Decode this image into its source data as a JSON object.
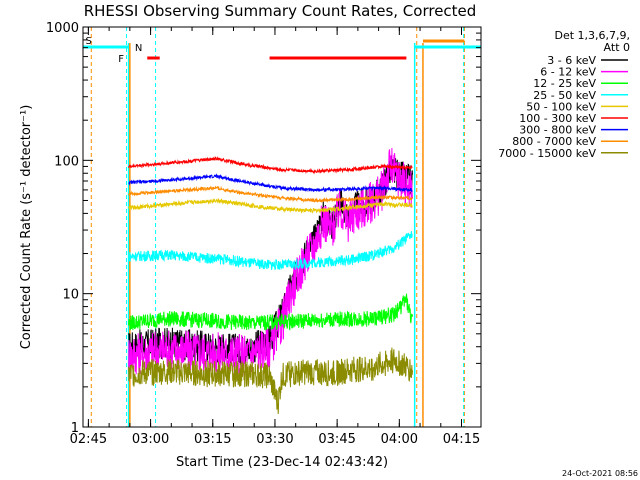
{
  "chart_data": {
    "type": "line",
    "title": "RHESSI Observing Summary Count Rates, Corrected",
    "xlabel": "Start Time (23-Dec-14 02:43:42)",
    "ylabel": "Corrected Count Rate (s⁻¹ detector⁻¹)",
    "footer": "24-Oct-2021 08:56",
    "x_unit": "minutes after 02:43:42 UT, 23-Dec-2014",
    "xlim": [
      0,
      96
    ],
    "ylim": [
      1,
      1000
    ],
    "yscale": "log",
    "x_ticks": [
      {
        "label": "02:45",
        "x": 1.3
      },
      {
        "label": "03:00",
        "x": 16.3
      },
      {
        "label": "03:15",
        "x": 31.3
      },
      {
        "label": "03:30",
        "x": 46.3
      },
      {
        "label": "03:45",
        "x": 61.3
      },
      {
        "label": "04:00",
        "x": 76.3
      },
      {
        "label": "04:15",
        "x": 91.3
      }
    ],
    "y_ticks": [
      {
        "label": "1",
        "y": 1
      },
      {
        "label": "10",
        "y": 10
      },
      {
        "label": "100",
        "y": 100
      },
      {
        "label": "1000",
        "y": 1000
      }
    ],
    "legend": {
      "header1": "Det 1,3,6,7,9,",
      "header2": "Att 0",
      "position": "right"
    },
    "series": [
      {
        "name": "3 - 6 keV",
        "color": "#000000",
        "x": [
          11,
          20,
          30,
          40,
          45,
          48,
          50,
          52,
          54,
          56,
          58,
          60,
          62,
          64,
          66,
          68,
          70,
          72,
          74,
          76,
          78,
          79.5
        ],
        "y": [
          4,
          4.3,
          4,
          3.8,
          4.5,
          7,
          11,
          15,
          21,
          26,
          40,
          32,
          48,
          38,
          45,
          47,
          52,
          60,
          85,
          78,
          72,
          70
        ]
      },
      {
        "name": "6 - 12 keV",
        "color": "#ff00ff",
        "x": [
          11,
          20,
          30,
          40,
          45,
          48,
          50,
          52,
          54,
          56,
          58,
          60,
          62,
          64,
          66,
          68,
          70,
          72,
          74,
          76,
          78,
          79.5
        ],
        "y": [
          3.5,
          3.8,
          3.6,
          3.5,
          4,
          6,
          10,
          14,
          19,
          24,
          36,
          30,
          44,
          34,
          42,
          44,
          50,
          58,
          90,
          75,
          65,
          60
        ]
      },
      {
        "name": "12 - 25 keV",
        "color": "#00ff00",
        "x": [
          11,
          20,
          30,
          40,
          50,
          60,
          70,
          75,
          78,
          79.5
        ],
        "y": [
          6,
          6.5,
          6.3,
          6,
          6.2,
          6.4,
          6.5,
          7,
          9,
          6
        ]
      },
      {
        "name": "25 - 50 keV",
        "color": "#00ffff",
        "x": [
          11,
          20,
          25,
          30,
          35,
          40,
          45,
          50,
          55,
          60,
          65,
          70,
          75,
          79.5
        ],
        "y": [
          19,
          19.5,
          19,
          18.5,
          18,
          17,
          16.5,
          16.5,
          17,
          17.5,
          18,
          19.5,
          22,
          28
        ]
      },
      {
        "name": "50 - 100 keV",
        "color": "#e6c800",
        "x": [
          11,
          18,
          25,
          32,
          40,
          48,
          56,
          64,
          72,
          79.5
        ],
        "y": [
          44,
          46,
          48,
          50,
          46,
          43,
          42,
          44,
          47,
          46
        ]
      },
      {
        "name": "100 - 300 keV",
        "color": "#ff0000",
        "x": [
          11,
          18,
          25,
          32,
          40,
          48,
          56,
          64,
          72,
          79.5
        ],
        "y": [
          90,
          94,
          98,
          103,
          92,
          85,
          83,
          85,
          90,
          88
        ]
      },
      {
        "name": "300 - 800 keV",
        "color": "#0000ff",
        "x": [
          11,
          18,
          25,
          32,
          40,
          48,
          56,
          64,
          72,
          79.5
        ],
        "y": [
          68,
          70,
          73,
          76,
          68,
          62,
          60,
          61,
          62,
          60
        ]
      },
      {
        "name": "800 - 7000 keV",
        "color": "#ff8c00",
        "x": [
          11,
          18,
          25,
          32,
          40,
          48,
          56,
          64,
          72,
          79.5
        ],
        "y": [
          56,
          58,
          60,
          62,
          56,
          52,
          50,
          51,
          53,
          52
        ]
      },
      {
        "name": "7000 - 15000 keV",
        "color": "#8b8b00",
        "x": [
          11,
          20,
          30,
          40,
          45,
          47,
          48,
          50,
          55,
          60,
          65,
          70,
          75,
          79.5
        ],
        "y": [
          2.5,
          2.6,
          2.5,
          2.5,
          2.4,
          1.5,
          2.4,
          2.5,
          2.6,
          2.5,
          2.7,
          2.8,
          3.2,
          2.7
        ]
      }
    ],
    "markers": {
      "night_orange": [
        2,
        80.5,
        92
      ],
      "saa_cyan": [
        10.5,
        17.5,
        91.8
      ],
      "top_segments": [
        {
          "color": "#00ffff",
          "from": 0,
          "to": 11
        },
        {
          "color": "#00ffff",
          "from": 80,
          "to": 96
        },
        {
          "color": "#ff8c00",
          "from": 82,
          "to": 92
        },
        {
          "color": "#ff0000",
          "from": 15.5,
          "to": 18.5
        },
        {
          "color": "#ff0000",
          "from": 45,
          "to": 78
        }
      ],
      "labels": [
        {
          "text": "S",
          "color": "#ff8c00"
        },
        {
          "text": "F",
          "color": "#ff0000"
        },
        {
          "text": "N",
          "color": "#00ffff"
        }
      ]
    }
  }
}
